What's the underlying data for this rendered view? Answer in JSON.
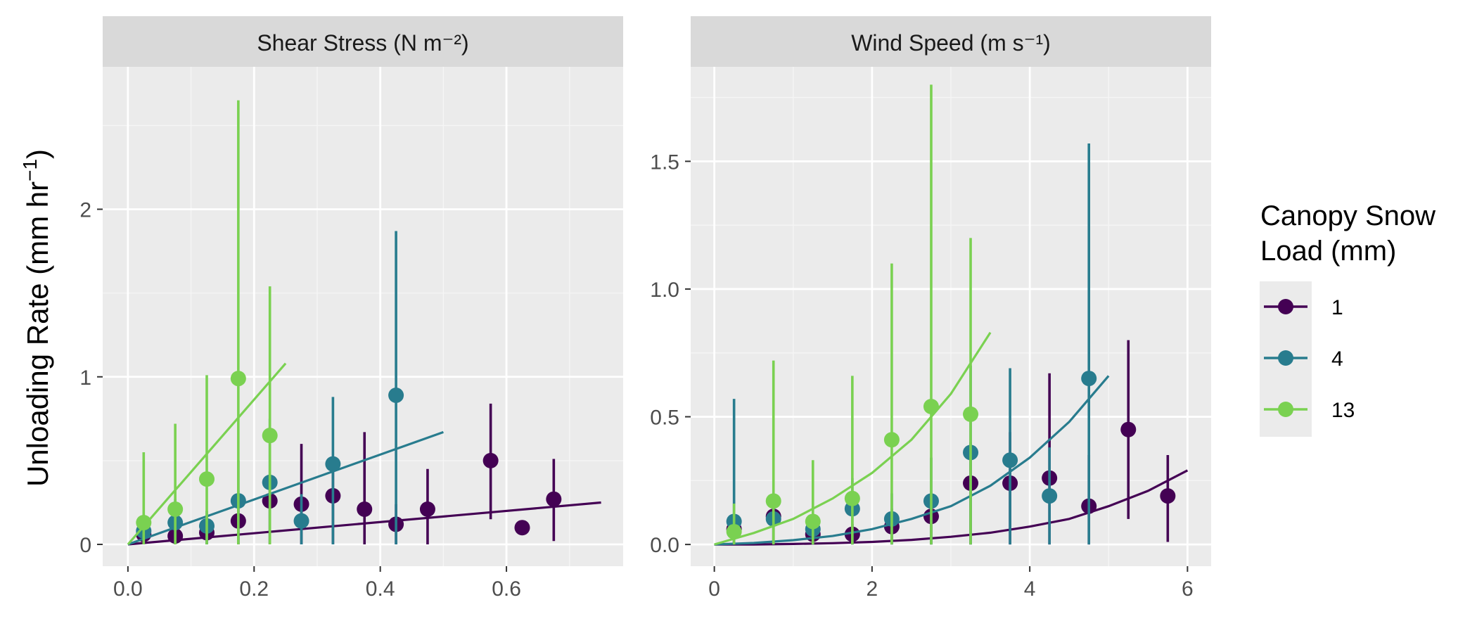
{
  "chart_data": {
    "type": "scatter",
    "ylabel": "Unloading Rate (mm hr",
    "ylabel_sup": "−1",
    "ylabel_close": ")",
    "legend": {
      "title_line1": "Canopy Snow",
      "title_line2": "Load (mm)",
      "placement": "right",
      "entries": [
        {
          "label": "1",
          "color": "#440154"
        },
        {
          "label": "4",
          "color": "#287C8E"
        },
        {
          "label": "13",
          "color": "#7AD151"
        }
      ]
    },
    "grid": true,
    "panels": [
      {
        "title": "Shear Stress (N m⁻²)",
        "xlim": [
          -0.04,
          0.785
        ],
        "ylim": [
          -0.13,
          2.85
        ],
        "xticks": [
          0.0,
          0.2,
          0.4,
          0.6
        ],
        "xtick_labels": [
          "0.0",
          "0.2",
          "0.4",
          "0.6"
        ],
        "yticks": [
          0,
          1,
          2
        ],
        "ytick_labels": [
          "0",
          "1",
          "2"
        ],
        "series": [
          {
            "name": "1",
            "color": "#440154",
            "points": [
              {
                "x": 0.025,
                "y": 0.06,
                "lo": 0.0,
                "hi": 0.1
              },
              {
                "x": 0.075,
                "y": 0.05,
                "lo": 0.0,
                "hi": 0.09
              },
              {
                "x": 0.125,
                "y": 0.07,
                "lo": 0.0,
                "hi": 0.12
              },
              {
                "x": 0.175,
                "y": 0.14,
                "lo": 0.0,
                "hi": 0.22
              },
              {
                "x": 0.225,
                "y": 0.26,
                "lo": 0.0,
                "hi": 0.34
              },
              {
                "x": 0.275,
                "y": 0.24,
                "lo": 0.0,
                "hi": 0.6
              },
              {
                "x": 0.325,
                "y": 0.29,
                "lo": 0.0,
                "hi": 0.52
              },
              {
                "x": 0.375,
                "y": 0.21,
                "lo": 0.0,
                "hi": 0.67
              },
              {
                "x": 0.425,
                "y": 0.12,
                "lo": 0.0,
                "hi": 0.24
              },
              {
                "x": 0.475,
                "y": 0.21,
                "lo": 0.0,
                "hi": 0.45
              },
              {
                "x": 0.575,
                "y": 0.5,
                "lo": 0.15,
                "hi": 0.84
              },
              {
                "x": 0.625,
                "y": 0.1,
                "lo": 0.06,
                "hi": 0.14
              },
              {
                "x": 0.675,
                "y": 0.27,
                "lo": 0.02,
                "hi": 0.51
              }
            ],
            "fit": {
              "x": [
                0.0,
                0.75
              ],
              "y": [
                0.0,
                0.25
              ]
            }
          },
          {
            "name": "4",
            "color": "#287C8E",
            "points": [
              {
                "x": 0.025,
                "y": 0.08,
                "lo": 0.0,
                "hi": 0.16
              },
              {
                "x": 0.075,
                "y": 0.13,
                "lo": 0.0,
                "hi": 0.27
              },
              {
                "x": 0.125,
                "y": 0.11,
                "lo": 0.0,
                "hi": 0.2
              },
              {
                "x": 0.175,
                "y": 0.26,
                "lo": 0.0,
                "hi": 0.5
              },
              {
                "x": 0.225,
                "y": 0.37,
                "lo": 0.0,
                "hi": 0.75
              },
              {
                "x": 0.275,
                "y": 0.14,
                "lo": 0.0,
                "hi": 0.3
              },
              {
                "x": 0.325,
                "y": 0.48,
                "lo": 0.0,
                "hi": 0.88
              },
              {
                "x": 0.425,
                "y": 0.89,
                "lo": 0.0,
                "hi": 1.87
              }
            ],
            "fit": {
              "x": [
                0.0,
                0.5
              ],
              "y": [
                0.0,
                0.67
              ]
            }
          },
          {
            "name": "13",
            "color": "#7AD151",
            "points": [
              {
                "x": 0.025,
                "y": 0.13,
                "lo": 0.0,
                "hi": 0.55
              },
              {
                "x": 0.075,
                "y": 0.21,
                "lo": 0.0,
                "hi": 0.72
              },
              {
                "x": 0.125,
                "y": 0.39,
                "lo": 0.0,
                "hi": 1.01
              },
              {
                "x": 0.175,
                "y": 0.99,
                "lo": 0.0,
                "hi": 2.65
              },
              {
                "x": 0.225,
                "y": 0.65,
                "lo": 0.0,
                "hi": 1.54
              }
            ],
            "fit": {
              "x": [
                0.0,
                0.25
              ],
              "y": [
                0.0,
                1.08
              ]
            }
          }
        ]
      },
      {
        "title": "Wind Speed (m s⁻¹)",
        "xlim": [
          -0.3,
          6.3
        ],
        "ylim": [
          -0.085,
          1.87
        ],
        "xticks": [
          0,
          2,
          4,
          6
        ],
        "xtick_labels": [
          "0",
          "2",
          "4",
          "6"
        ],
        "yticks": [
          0.0,
          0.5,
          1.0,
          1.5
        ],
        "ytick_labels": [
          "0.0",
          "0.5",
          "1.0",
          "1.5"
        ],
        "series": [
          {
            "name": "1",
            "color": "#440154",
            "points": [
              {
                "x": 0.25,
                "y": 0.06,
                "lo": 0.0,
                "hi": 0.12
              },
              {
                "x": 0.75,
                "y": 0.11,
                "lo": 0.0,
                "hi": 0.2
              },
              {
                "x": 1.25,
                "y": 0.04,
                "lo": 0.0,
                "hi": 0.09
              },
              {
                "x": 1.75,
                "y": 0.04,
                "lo": 0.0,
                "hi": 0.08
              },
              {
                "x": 2.25,
                "y": 0.07,
                "lo": 0.0,
                "hi": 0.14
              },
              {
                "x": 2.75,
                "y": 0.11,
                "lo": 0.0,
                "hi": 0.2
              },
              {
                "x": 3.25,
                "y": 0.24,
                "lo": 0.0,
                "hi": 0.4
              },
              {
                "x": 3.75,
                "y": 0.24,
                "lo": 0.0,
                "hi": 0.44
              },
              {
                "x": 4.25,
                "y": 0.26,
                "lo": 0.0,
                "hi": 0.67
              },
              {
                "x": 4.75,
                "y": 0.15,
                "lo": 0.0,
                "hi": 0.35
              },
              {
                "x": 5.25,
                "y": 0.45,
                "lo": 0.1,
                "hi": 0.8
              },
              {
                "x": 5.75,
                "y": 0.19,
                "lo": 0.01,
                "hi": 0.35
              }
            ],
            "fit": {
              "x": [
                0,
                0.5,
                1,
                1.5,
                2,
                2.5,
                3,
                3.5,
                4,
                4.5,
                5,
                5.5,
                6
              ],
              "y": [
                0.0,
                0.0,
                0.002,
                0.005,
                0.01,
                0.018,
                0.03,
                0.046,
                0.07,
                0.1,
                0.15,
                0.21,
                0.29
              ]
            }
          },
          {
            "name": "4",
            "color": "#287C8E",
            "points": [
              {
                "x": 0.25,
                "y": 0.09,
                "lo": 0.0,
                "hi": 0.57
              },
              {
                "x": 0.75,
                "y": 0.1,
                "lo": 0.0,
                "hi": 0.2
              },
              {
                "x": 1.25,
                "y": 0.06,
                "lo": 0.0,
                "hi": 0.12
              },
              {
                "x": 1.75,
                "y": 0.14,
                "lo": 0.0,
                "hi": 0.26
              },
              {
                "x": 2.25,
                "y": 0.1,
                "lo": 0.0,
                "hi": 0.2
              },
              {
                "x": 2.75,
                "y": 0.17,
                "lo": 0.0,
                "hi": 0.34
              },
              {
                "x": 3.25,
                "y": 0.36,
                "lo": 0.0,
                "hi": 0.7
              },
              {
                "x": 3.75,
                "y": 0.33,
                "lo": 0.0,
                "hi": 0.69
              },
              {
                "x": 4.25,
                "y": 0.19,
                "lo": 0.0,
                "hi": 0.38
              },
              {
                "x": 4.75,
                "y": 0.65,
                "lo": 0.0,
                "hi": 1.57
              }
            ],
            "fit": {
              "x": [
                0,
                0.5,
                1,
                1.5,
                2,
                2.5,
                3,
                3.5,
                4,
                4.5,
                5
              ],
              "y": [
                0.0,
                0.006,
                0.017,
                0.033,
                0.06,
                0.1,
                0.15,
                0.23,
                0.34,
                0.48,
                0.66
              ]
            }
          },
          {
            "name": "13",
            "color": "#7AD151",
            "points": [
              {
                "x": 0.25,
                "y": 0.05,
                "lo": 0.0,
                "hi": 0.16
              },
              {
                "x": 0.75,
                "y": 0.17,
                "lo": 0.0,
                "hi": 0.72
              },
              {
                "x": 1.25,
                "y": 0.09,
                "lo": 0.0,
                "hi": 0.33
              },
              {
                "x": 1.75,
                "y": 0.18,
                "lo": 0.0,
                "hi": 0.66
              },
              {
                "x": 2.25,
                "y": 0.41,
                "lo": 0.0,
                "hi": 1.1
              },
              {
                "x": 2.75,
                "y": 0.54,
                "lo": 0.0,
                "hi": 1.8
              },
              {
                "x": 3.25,
                "y": 0.51,
                "lo": 0.0,
                "hi": 1.2
              }
            ],
            "fit": {
              "x": [
                0,
                0.5,
                1,
                1.5,
                2,
                2.5,
                3,
                3.5
              ],
              "y": [
                0.0,
                0.045,
                0.1,
                0.18,
                0.28,
                0.41,
                0.59,
                0.83
              ]
            }
          }
        ]
      }
    ]
  }
}
